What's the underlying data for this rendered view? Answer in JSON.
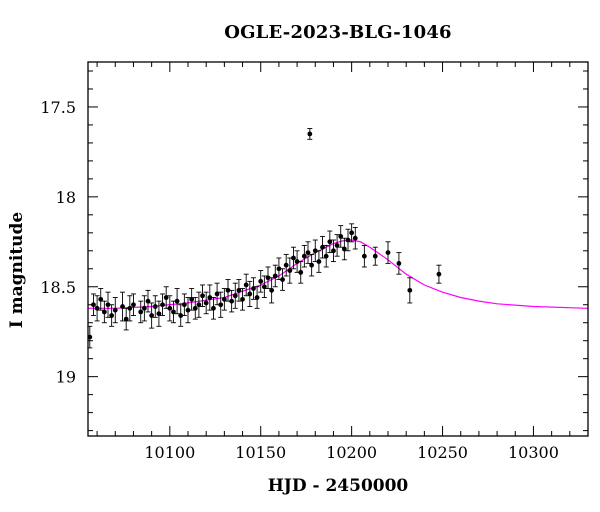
{
  "chart_data": {
    "type": "scatter",
    "title": "OGLE-2023-BLG-1046",
    "xlabel": "HJD - 2450000",
    "ylabel": "I magnitude",
    "xlim": [
      10055,
      10330
    ],
    "ylim": [
      19.33,
      17.25
    ],
    "y_inverted": true,
    "x_ticks": [
      10100,
      10150,
      10200,
      10250,
      10300
    ],
    "y_ticks": [
      17.5,
      18,
      18.5,
      19
    ],
    "x_tick_labels": [
      "10100",
      "10150",
      "10200",
      "10250",
      "10300"
    ],
    "y_tick_labels": [
      "17.5",
      "18",
      "18.5",
      "19"
    ],
    "grid": false,
    "series": [
      {
        "kind": "points-with-errorbars",
        "color": "#000000",
        "x": [
          10056,
          10058,
          10060,
          10062,
          10064,
          10066,
          10068,
          10070,
          10074,
          10076,
          10078,
          10080,
          10084,
          10086,
          10088,
          10090,
          10092,
          10094,
          10096,
          10098,
          10100,
          10102,
          10104,
          10106,
          10108,
          10110,
          10112,
          10114,
          10116,
          10118,
          10120,
          10122,
          10124,
          10126,
          10128,
          10130,
          10132,
          10134,
          10136,
          10138,
          10140,
          10142,
          10144,
          10146,
          10148,
          10150,
          10152,
          10154,
          10156,
          10158,
          10160,
          10162,
          10164,
          10166,
          10168,
          10170,
          10172,
          10174,
          10176,
          10177,
          10178,
          10180,
          10182,
          10184,
          10186,
          10188,
          10190,
          10192,
          10194,
          10196,
          10198,
          10200,
          10202,
          10207,
          10213,
          10220,
          10226,
          10232,
          10248
        ],
        "y": [
          18.78,
          18.6,
          18.62,
          18.57,
          18.64,
          18.6,
          18.66,
          18.63,
          18.61,
          18.68,
          18.62,
          18.6,
          18.64,
          18.62,
          18.58,
          18.66,
          18.61,
          18.65,
          18.6,
          18.56,
          18.62,
          18.64,
          18.58,
          18.66,
          18.6,
          18.63,
          18.57,
          18.62,
          18.6,
          18.55,
          18.59,
          18.56,
          18.62,
          18.54,
          18.6,
          18.57,
          18.52,
          18.58,
          18.55,
          18.52,
          18.57,
          18.49,
          18.54,
          18.51,
          18.56,
          18.47,
          18.5,
          18.45,
          18.52,
          18.44,
          18.4,
          18.46,
          18.38,
          18.41,
          18.34,
          18.36,
          18.42,
          18.33,
          18.31,
          17.65,
          18.38,
          18.3,
          18.36,
          18.28,
          18.33,
          18.25,
          18.3,
          18.27,
          18.22,
          18.29,
          18.24,
          18.2,
          18.23,
          18.33,
          18.33,
          18.31,
          18.37,
          18.52,
          18.43
        ],
        "err": [
          0.06,
          0.06,
          0.07,
          0.06,
          0.06,
          0.07,
          0.06,
          0.07,
          0.08,
          0.06,
          0.07,
          0.06,
          0.06,
          0.07,
          0.06,
          0.07,
          0.06,
          0.07,
          0.06,
          0.06,
          0.07,
          0.06,
          0.07,
          0.06,
          0.06,
          0.07,
          0.06,
          0.06,
          0.07,
          0.06,
          0.06,
          0.07,
          0.06,
          0.06,
          0.07,
          0.06,
          0.06,
          0.06,
          0.07,
          0.06,
          0.06,
          0.06,
          0.07,
          0.06,
          0.06,
          0.06,
          0.06,
          0.06,
          0.07,
          0.06,
          0.06,
          0.06,
          0.06,
          0.07,
          0.06,
          0.06,
          0.06,
          0.06,
          0.06,
          0.03,
          0.06,
          0.06,
          0.06,
          0.06,
          0.06,
          0.06,
          0.06,
          0.06,
          0.06,
          0.06,
          0.06,
          0.05,
          0.06,
          0.06,
          0.05,
          0.06,
          0.06,
          0.07,
          0.05
        ]
      },
      {
        "kind": "model-curve",
        "color": "#ff00ff",
        "x": [
          10055,
          10070,
          10090,
          10110,
          10130,
          10150,
          10160,
          10170,
          10180,
          10190,
          10195,
          10200,
          10205,
          10210,
          10220,
          10230,
          10240,
          10250,
          10260,
          10270,
          10280,
          10300,
          10330
        ],
        "y": [
          18.62,
          18.62,
          18.61,
          18.59,
          18.56,
          18.49,
          18.44,
          18.37,
          18.31,
          18.26,
          18.245,
          18.24,
          18.25,
          18.28,
          18.35,
          18.43,
          18.49,
          18.53,
          18.56,
          18.58,
          18.595,
          18.61,
          18.62
        ]
      }
    ]
  }
}
